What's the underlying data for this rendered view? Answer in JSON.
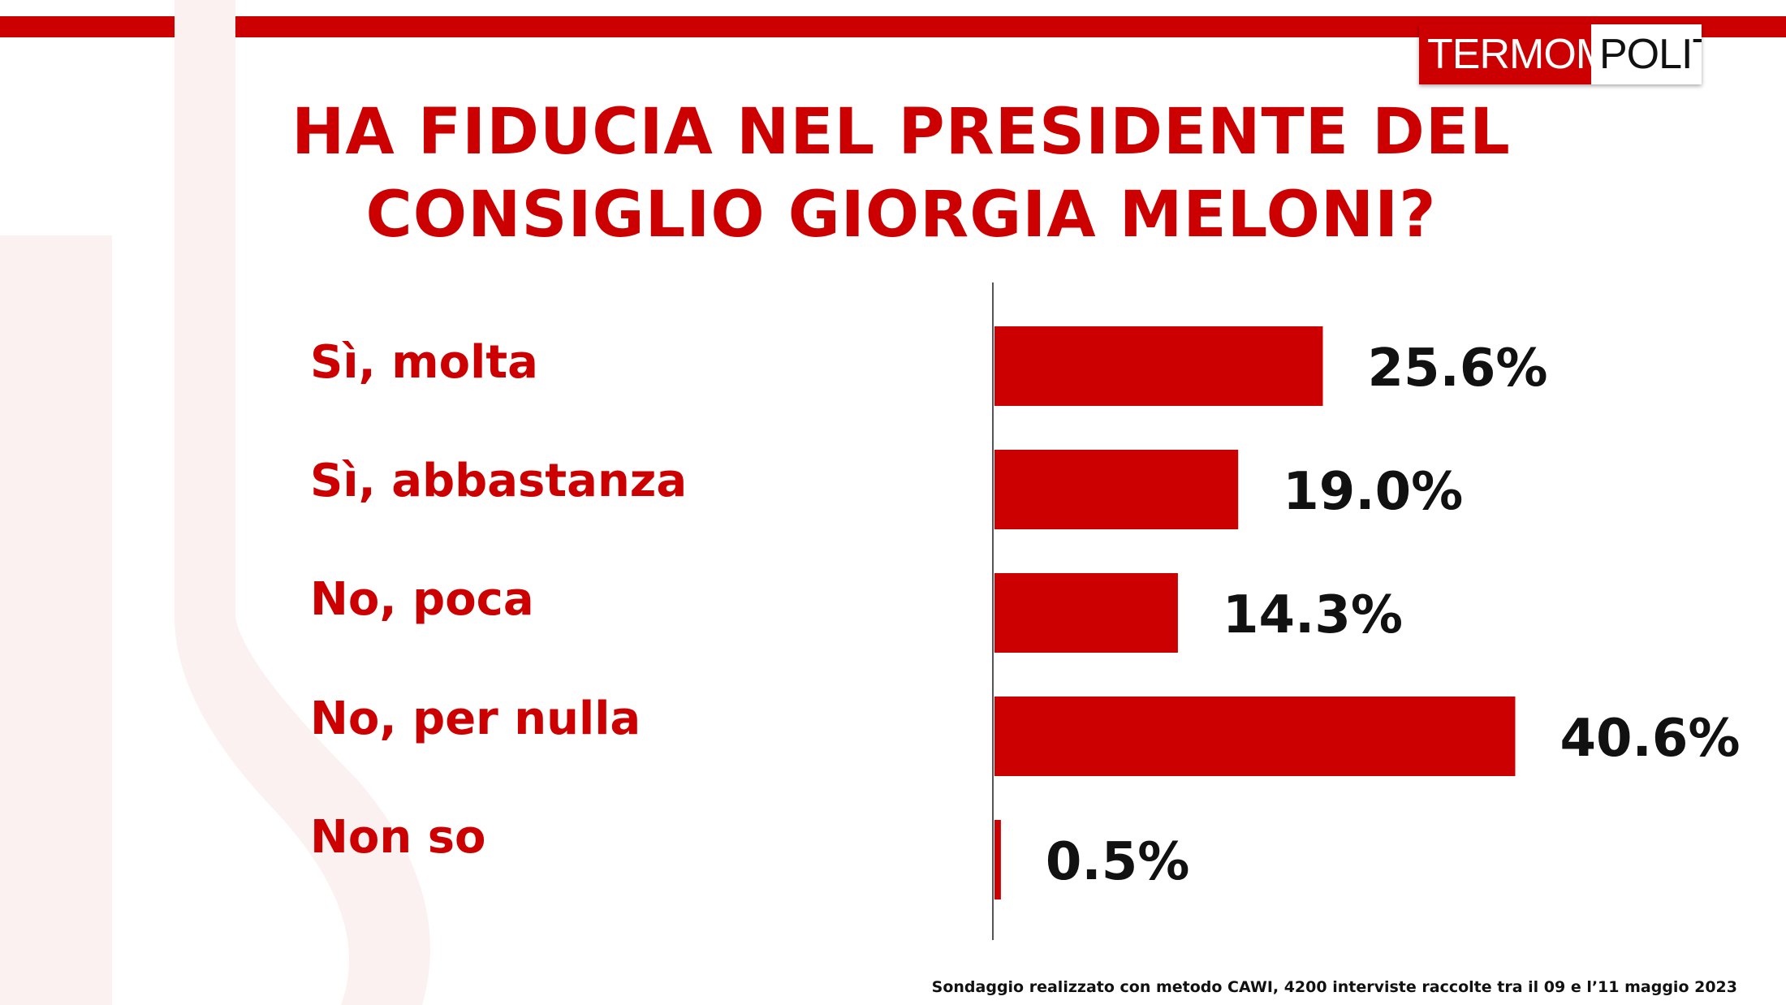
{
  "logo": {
    "part1": "TERMOMETRO",
    "part2": "POLITICO"
  },
  "title_lines": [
    "HA FIDUCIA NEL PRESIDENTE DEL",
    "CONSIGLIO GIORGIA MELONI?"
  ],
  "chart_data": {
    "type": "bar",
    "orientation": "horizontal",
    "categories": [
      "Sì, molta",
      "Sì, abbastanza",
      "No, poca",
      "No, per nulla",
      "Non so"
    ],
    "values": [
      25.6,
      19.0,
      14.3,
      40.6,
      0.5
    ],
    "value_labels": [
      "25.6%",
      "19.0%",
      "14.3%",
      "40.6%",
      "0.5%"
    ],
    "title": "HA FIDUCIA NEL PRESIDENTE DEL CONSIGLIO GIORGIA MELONI?",
    "unit": "%",
    "grid": false,
    "legend": "none",
    "bar_color": "#cc0000"
  },
  "footnote": "Sondaggio realizzato con metodo CAWI, 4200 interviste raccolte tra il 09 e l’11 maggio 2023",
  "colors": {
    "accent": "#cc0000",
    "text": "#111111",
    "background": "#ffffff"
  }
}
